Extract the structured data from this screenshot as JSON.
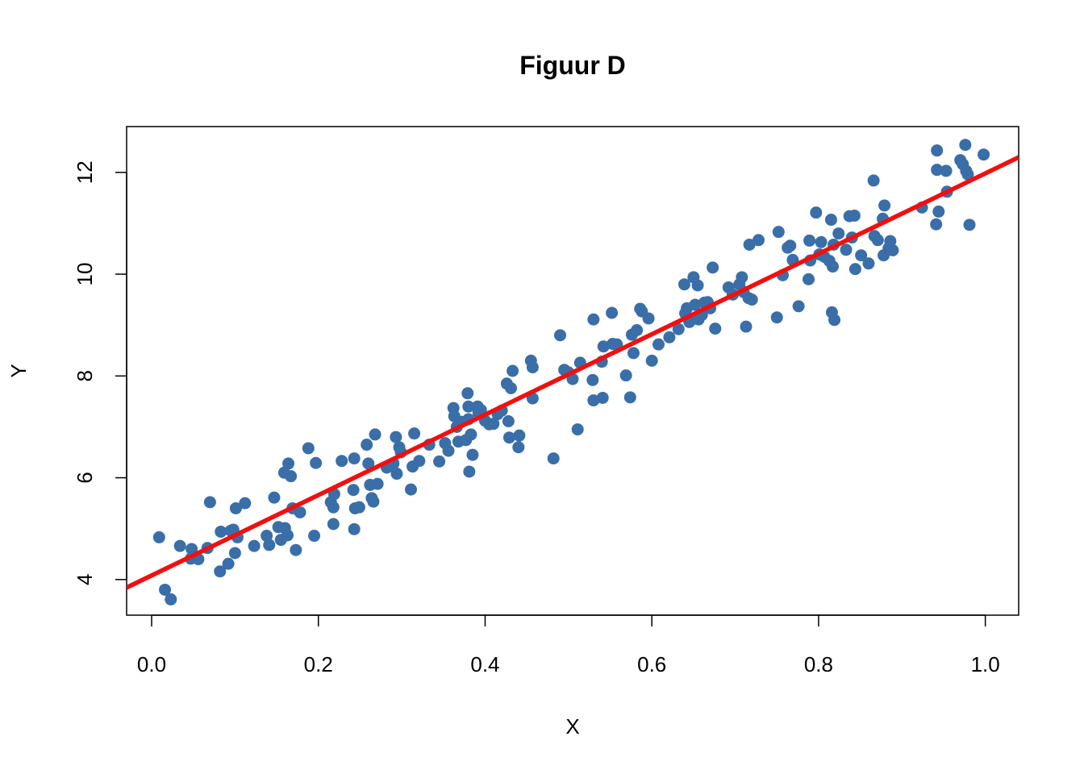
{
  "chart_data": {
    "type": "scatter",
    "title": "Figuur D",
    "xlabel": "X",
    "ylabel": "Y",
    "xlim": [
      -0.03,
      1.04
    ],
    "ylim": [
      3.3,
      12.9
    ],
    "xticks": [
      0.0,
      0.2,
      0.4,
      0.6,
      0.8,
      1.0
    ],
    "xtick_labels": [
      "0.0",
      "0.2",
      "0.4",
      "0.6",
      "0.8",
      "1.0"
    ],
    "yticks": [
      4,
      6,
      8,
      10,
      12
    ],
    "ytick_labels": [
      "4",
      "6",
      "8",
      "10",
      "12"
    ],
    "grid": false,
    "legend": "none",
    "point_color": "#3A6EA8",
    "line_color": "#F20F0F",
    "fit_line": {
      "intercept": 4.08,
      "slope": 7.9
    },
    "x": [
      0.009,
      0.016,
      0.023,
      0.034,
      0.047,
      0.048,
      0.056,
      0.067,
      0.07,
      0.082,
      0.083,
      0.092,
      0.095,
      0.098,
      0.1,
      0.101,
      0.103,
      0.112,
      0.123,
      0.138,
      0.141,
      0.147,
      0.152,
      0.155,
      0.159,
      0.16,
      0.163,
      0.164,
      0.167,
      0.169,
      0.173,
      0.178,
      0.188,
      0.195,
      0.197,
      0.215,
      0.218,
      0.219,
      0.218,
      0.228,
      0.242,
      0.243,
      0.243,
      0.244,
      0.249,
      0.258,
      0.26,
      0.262,
      0.264,
      0.266,
      0.268,
      0.271,
      0.282,
      0.29,
      0.293,
      0.294,
      0.297,
      0.299,
      0.311,
      0.313,
      0.315,
      0.321,
      0.333,
      0.345,
      0.352,
      0.356,
      0.362,
      0.363,
      0.366,
      0.368,
      0.371,
      0.377,
      0.379,
      0.38,
      0.38,
      0.381,
      0.383,
      0.385,
      0.391,
      0.392,
      0.395,
      0.4,
      0.405,
      0.41,
      0.415,
      0.42,
      0.426,
      0.428,
      0.429,
      0.431,
      0.433,
      0.44,
      0.441,
      0.455,
      0.457,
      0.457,
      0.482,
      0.49,
      0.495,
      0.5,
      0.505,
      0.511,
      0.514,
      0.529,
      0.53,
      0.53,
      0.54,
      0.541,
      0.542,
      0.552,
      0.553,
      0.558,
      0.569,
      0.574,
      0.576,
      0.578,
      0.582,
      0.586,
      0.588,
      0.596,
      0.6,
      0.608,
      0.621,
      0.632,
      0.639,
      0.64,
      0.642,
      0.645,
      0.65,
      0.652,
      0.655,
      0.656,
      0.66,
      0.663,
      0.667,
      0.67,
      0.673,
      0.676,
      0.692,
      0.697,
      0.705,
      0.708,
      0.71,
      0.713,
      0.716,
      0.717,
      0.72,
      0.728,
      0.75,
      0.752,
      0.757,
      0.763,
      0.766,
      0.769,
      0.776,
      0.788,
      0.789,
      0.79,
      0.797,
      0.801,
      0.803,
      0.807,
      0.813,
      0.815,
      0.816,
      0.817,
      0.818,
      0.819,
      0.824,
      0.833,
      0.837,
      0.84,
      0.843,
      0.844,
      0.851,
      0.86,
      0.866,
      0.867,
      0.871,
      0.877,
      0.878,
      0.879,
      0.884,
      0.886,
      0.889,
      0.924,
      0.941,
      0.942,
      0.942,
      0.944,
      0.953,
      0.954,
      0.97,
      0.973,
      0.976,
      0.977,
      0.979,
      0.981,
      0.998
    ],
    "y": [
      4.83,
      3.8,
      3.61,
      4.66,
      4.41,
      4.6,
      4.4,
      4.62,
      5.52,
      4.16,
      4.94,
      4.31,
      4.96,
      4.98,
      4.52,
      5.4,
      4.83,
      5.5,
      4.66,
      4.86,
      4.68,
      5.61,
      5.03,
      4.78,
      6.1,
      5.01,
      4.87,
      6.28,
      6.03,
      5.4,
      4.58,
      5.32,
      6.58,
      4.86,
      6.29,
      5.52,
      5.09,
      5.68,
      5.42,
      6.33,
      5.76,
      4.99,
      6.38,
      5.4,
      5.42,
      6.65,
      6.28,
      5.86,
      5.6,
      5.53,
      6.85,
      5.88,
      6.2,
      6.28,
      6.8,
      6.08,
      6.6,
      6.5,
      5.77,
      6.22,
      6.87,
      6.33,
      6.65,
      6.32,
      6.68,
      6.53,
      7.37,
      7.21,
      7.0,
      6.71,
      7.1,
      6.74,
      7.66,
      7.4,
      7.15,
      6.12,
      6.85,
      6.45,
      7.4,
      7.28,
      7.33,
      7.12,
      7.05,
      7.06,
      7.25,
      7.32,
      7.85,
      7.11,
      6.79,
      7.76,
      8.1,
      6.6,
      6.83,
      8.3,
      8.17,
      7.56,
      6.38,
      8.8,
      8.12,
      8.07,
      7.94,
      6.95,
      8.26,
      7.92,
      9.11,
      7.52,
      8.28,
      7.57,
      8.58,
      9.24,
      8.63,
      8.62,
      8.01,
      7.58,
      8.81,
      8.45,
      8.9,
      9.32,
      9.27,
      9.13,
      8.3,
      8.62,
      8.76,
      8.92,
      9.8,
      9.23,
      9.33,
      9.06,
      9.94,
      9.4,
      9.78,
      9.11,
      9.2,
      9.44,
      9.45,
      9.33,
      10.13,
      8.93,
      9.74,
      9.6,
      9.8,
      9.94,
      9.65,
      8.97,
      9.53,
      10.58,
      9.5,
      10.67,
      9.15,
      10.83,
      9.98,
      10.52,
      10.56,
      10.28,
      9.37,
      9.9,
      10.66,
      10.27,
      11.21,
      10.39,
      10.63,
      10.34,
      10.26,
      11.07,
      9.25,
      10.15,
      10.58,
      9.1,
      10.8,
      10.48,
      11.14,
      10.72,
      11.15,
      10.1,
      10.37,
      10.21,
      11.84,
      10.75,
      10.67,
      11.09,
      10.37,
      11.35,
      10.51,
      10.65,
      10.47,
      11.31,
      10.98,
      12.05,
      12.43,
      11.23,
      12.03,
      11.62,
      12.24,
      12.16,
      12.54,
      12.03,
      11.96,
      10.97,
      12.35
    ]
  }
}
